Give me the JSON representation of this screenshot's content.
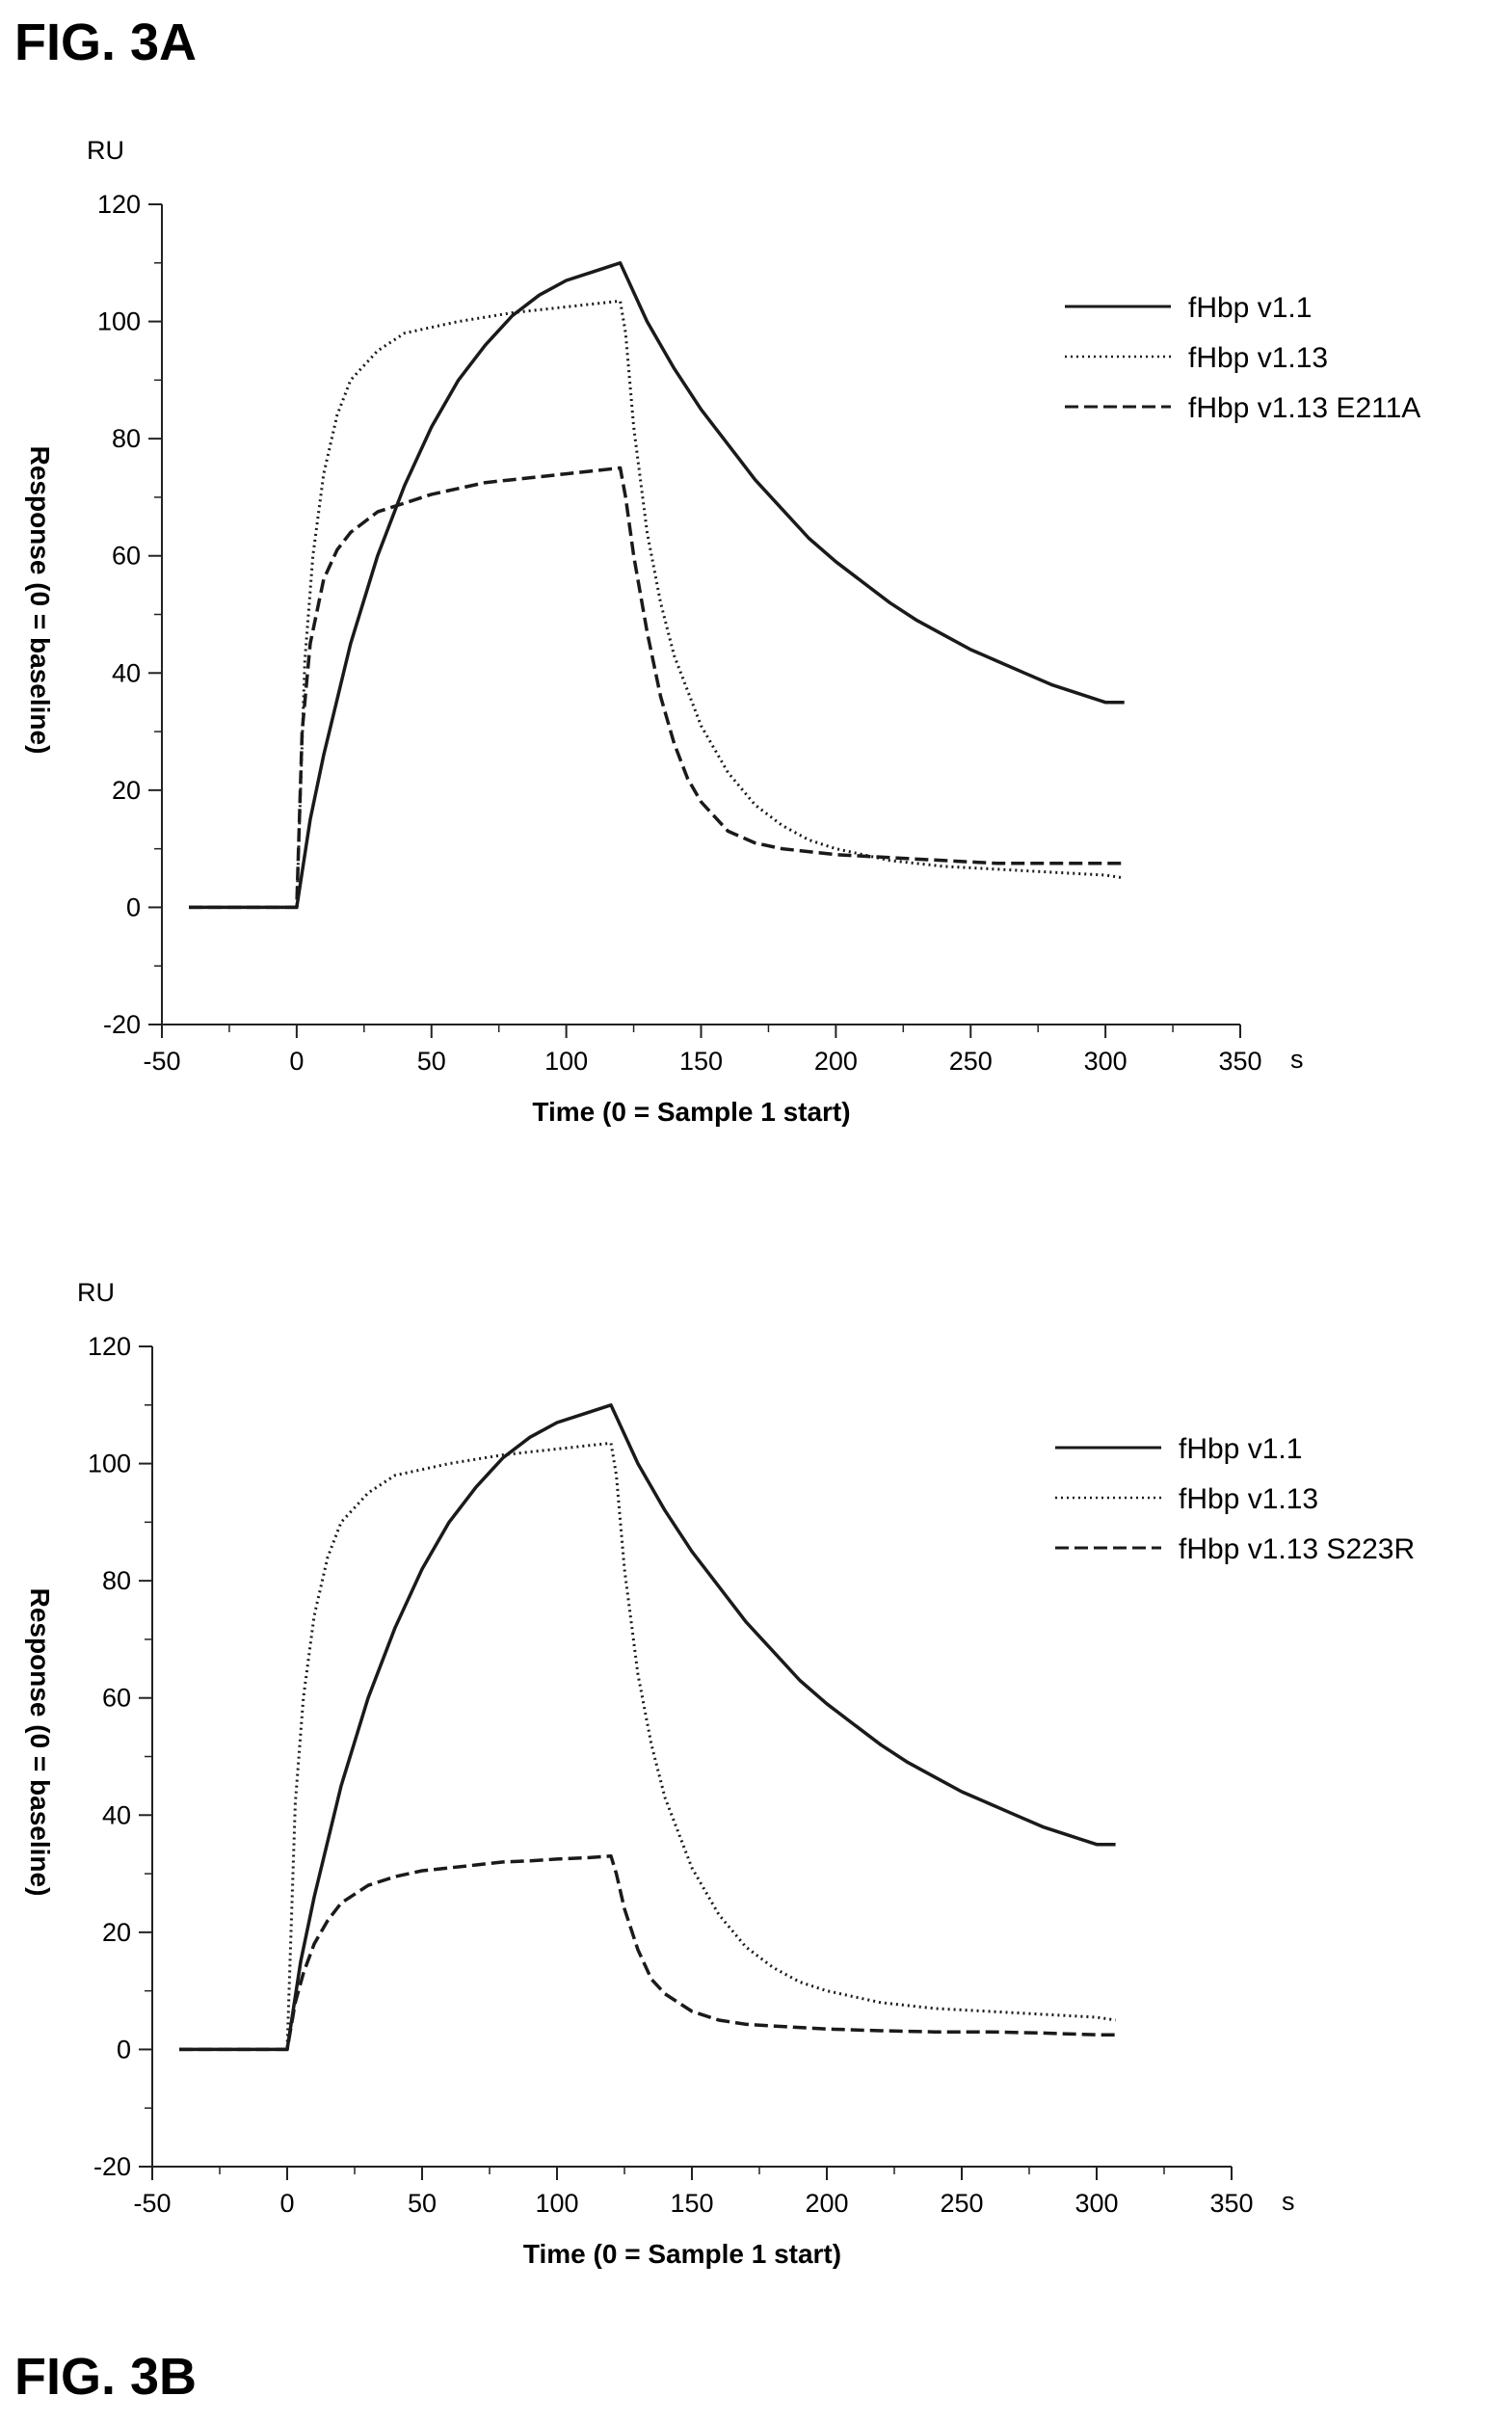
{
  "figures": {
    "a_label": "FIG. 3A",
    "b_label": "FIG. 3B"
  },
  "chart_data": [
    {
      "type": "line",
      "figure": "FIG. 3A",
      "xlabel": "Time (0 = Sample 1 start)",
      "x_unit": "s",
      "ylabel": "Response (0 = baseline)",
      "y_unit": "RU",
      "xlim": [
        -50,
        350
      ],
      "ylim": [
        -20,
        120
      ],
      "xticks": [
        -50,
        0,
        50,
        100,
        150,
        200,
        250,
        300,
        350
      ],
      "yticks": [
        -20,
        0,
        20,
        40,
        60,
        80,
        100,
        120
      ],
      "grid": false,
      "legend_position": "top-right",
      "series": [
        {
          "name": "fHbp v1.1",
          "style": "solid",
          "x": [
            -40,
            0,
            5,
            10,
            20,
            30,
            40,
            50,
            60,
            70,
            80,
            90,
            100,
            110,
            120,
            130,
            140,
            150,
            160,
            170,
            180,
            190,
            200,
            210,
            220,
            230,
            240,
            250,
            260,
            270,
            280,
            290,
            300,
            307
          ],
          "y": [
            0,
            0,
            15,
            26,
            45,
            60,
            72,
            82,
            90,
            96,
            101,
            104.5,
            107,
            108.5,
            110,
            100,
            92,
            85,
            79,
            73,
            68,
            63,
            59,
            55.5,
            52,
            49,
            46.5,
            44,
            42,
            40,
            38,
            36.5,
            35,
            35
          ]
        },
        {
          "name": "fHbp v1.13",
          "style": "dotted",
          "x": [
            -40,
            0,
            3,
            6,
            10,
            15,
            20,
            30,
            40,
            50,
            60,
            80,
            100,
            120,
            122,
            125,
            130,
            135,
            140,
            150,
            160,
            170,
            180,
            190,
            200,
            210,
            220,
            240,
            260,
            280,
            300,
            307
          ],
          "y": [
            0,
            0,
            42,
            60,
            74,
            84,
            90,
            95,
            98,
            99,
            100,
            101.5,
            102.5,
            103.5,
            98,
            82,
            64,
            52,
            43,
            31,
            23,
            17.5,
            14,
            11.5,
            10,
            9,
            8,
            7,
            6.5,
            6,
            5.5,
            5
          ]
        },
        {
          "name": "fHbp v1.13 E211A",
          "style": "dashed",
          "x": [
            -40,
            0,
            2,
            5,
            10,
            15,
            20,
            30,
            40,
            50,
            60,
            70,
            80,
            90,
            100,
            110,
            120,
            122,
            125,
            130,
            135,
            140,
            145,
            150,
            160,
            170,
            180,
            200,
            220,
            240,
            260,
            280,
            300,
            307
          ],
          "y": [
            0,
            0,
            30,
            45,
            56,
            61,
            64,
            67.5,
            69,
            70.5,
            71.5,
            72.5,
            73,
            73.5,
            74,
            74.5,
            75,
            70,
            60,
            47,
            36,
            28,
            22,
            18,
            13,
            11,
            10,
            9,
            8.5,
            8,
            7.5,
            7.5,
            7.5,
            7.5
          ]
        }
      ]
    },
    {
      "type": "line",
      "figure": "FIG. 3B",
      "xlabel": "Time (0 = Sample 1 start)",
      "x_unit": "s",
      "ylabel": "Response (0 = baseline)",
      "y_unit": "RU",
      "xlim": [
        -50,
        350
      ],
      "ylim": [
        -20,
        120
      ],
      "xticks": [
        -50,
        0,
        50,
        100,
        150,
        200,
        250,
        300,
        350
      ],
      "yticks": [
        -20,
        0,
        20,
        40,
        60,
        80,
        100,
        120
      ],
      "grid": false,
      "legend_position": "top-right",
      "series": [
        {
          "name": "fHbp v1.1",
          "style": "solid",
          "x": [
            -40,
            0,
            5,
            10,
            20,
            30,
            40,
            50,
            60,
            70,
            80,
            90,
            100,
            110,
            120,
            130,
            140,
            150,
            160,
            170,
            180,
            190,
            200,
            210,
            220,
            230,
            240,
            250,
            260,
            270,
            280,
            290,
            300,
            307
          ],
          "y": [
            0,
            0,
            15,
            26,
            45,
            60,
            72,
            82,
            90,
            96,
            101,
            104.5,
            107,
            108.5,
            110,
            100,
            92,
            85,
            79,
            73,
            68,
            63,
            59,
            55.5,
            52,
            49,
            46.5,
            44,
            42,
            40,
            38,
            36.5,
            35,
            35
          ]
        },
        {
          "name": "fHbp v1.13",
          "style": "dotted",
          "x": [
            -40,
            0,
            3,
            6,
            10,
            15,
            20,
            30,
            40,
            50,
            60,
            80,
            100,
            120,
            122,
            125,
            130,
            135,
            140,
            150,
            160,
            170,
            180,
            190,
            200,
            210,
            220,
            240,
            260,
            280,
            300,
            307
          ],
          "y": [
            0,
            0,
            42,
            60,
            74,
            84,
            90,
            95,
            98,
            99,
            100,
            101.5,
            102.5,
            103.5,
            98,
            82,
            64,
            52,
            43,
            31,
            23,
            17.5,
            14,
            11.5,
            10,
            9,
            8,
            7,
            6.5,
            6,
            5.5,
            5
          ]
        },
        {
          "name": "fHbp v1.13 S223R",
          "style": "dashed",
          "x": [
            -40,
            0,
            3,
            6,
            10,
            15,
            20,
            30,
            40,
            50,
            60,
            70,
            80,
            90,
            100,
            110,
            120,
            122,
            125,
            130,
            135,
            140,
            150,
            160,
            170,
            180,
            200,
            220,
            240,
            260,
            280,
            300,
            307
          ],
          "y": [
            0,
            0,
            8,
            13,
            18,
            22,
            25,
            28,
            29.5,
            30.5,
            31,
            31.5,
            32,
            32.2,
            32.5,
            32.7,
            33,
            30,
            24,
            17,
            12,
            9.5,
            6.5,
            5,
            4.3,
            4,
            3.5,
            3.2,
            3,
            3,
            2.8,
            2.5,
            2.5
          ]
        }
      ]
    }
  ]
}
